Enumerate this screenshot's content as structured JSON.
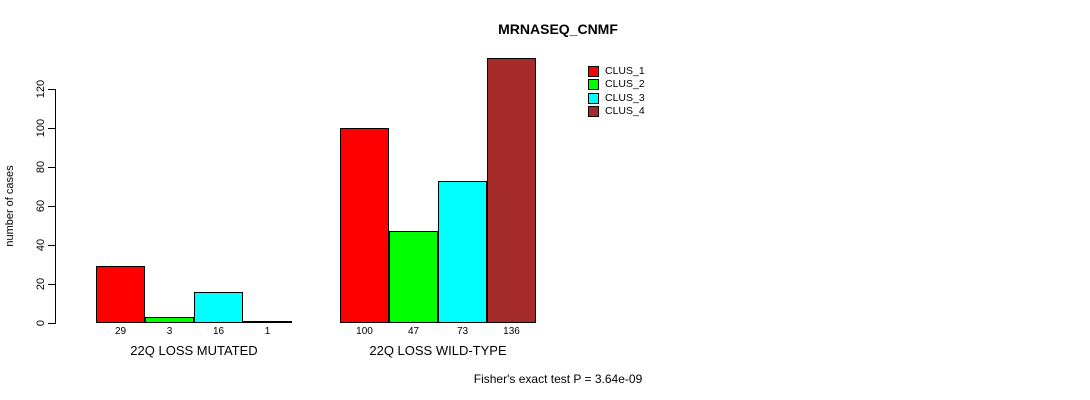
{
  "title": "MRNASEQ_CNMF",
  "ylabel": "number of cases",
  "footer": "Fisher's exact test P = 3.64e-09",
  "chart_data": {
    "type": "bar",
    "title": "MRNASEQ_CNMF",
    "xlabel": "",
    "ylabel": "number of cases",
    "categories": [
      "22Q LOSS MUTATED",
      "22Q LOSS WILD-TYPE"
    ],
    "series": [
      {
        "name": "CLUS_1",
        "color": "#ff0000",
        "values": [
          29,
          100
        ]
      },
      {
        "name": "CLUS_2",
        "color": "#00ff00",
        "values": [
          3,
          47
        ]
      },
      {
        "name": "CLUS_3",
        "color": "#00ffff",
        "values": [
          16,
          73
        ]
      },
      {
        "name": "CLUS_4",
        "color": "#a52a2a",
        "values": [
          1,
          136
        ]
      }
    ],
    "yticks": [
      0,
      20,
      40,
      60,
      80,
      100,
      120
    ],
    "ylim": [
      0,
      137
    ],
    "grid": false,
    "bar_value_labels": true,
    "legend_position": "top-right",
    "annotation": "Fisher's exact test P = 3.64e-09"
  }
}
